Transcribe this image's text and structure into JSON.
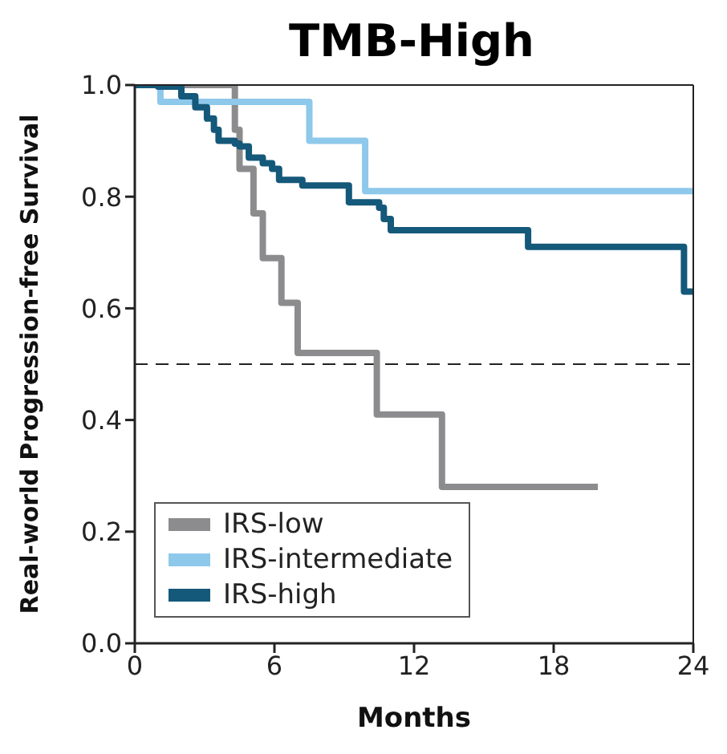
{
  "chart_data": {
    "type": "step",
    "title": "TMB-High",
    "xlabel": "Months",
    "ylabel": "Real-world Progression-free Survival",
    "xlim": [
      0,
      24
    ],
    "xticks": [
      0,
      6,
      12,
      18,
      24
    ],
    "ylim": [
      0,
      1
    ],
    "yticks": [
      {
        "value": 0,
        "label": "0.0"
      },
      {
        "value": 0.2,
        "label": "0.2"
      },
      {
        "value": 0.4,
        "label": "0.4"
      },
      {
        "value": 0.6,
        "label": "0.6"
      },
      {
        "value": 0.8,
        "label": "0.8"
      },
      {
        "value": 1,
        "label": "1.0"
      }
    ],
    "legend": "bottom left",
    "marker": "none",
    "line_style": "solid",
    "ref_lines": [
      {
        "axis": "y",
        "value": 0.5,
        "color": "#222222",
        "line_style": "dashed"
      }
    ],
    "series": [
      {
        "name": "IRS-low",
        "color": "#8c8c8e",
        "x": [
          0,
          4.3,
          4.5,
          5.1,
          5.5,
          6.3,
          7.0,
          10.4,
          13.2,
          19.9
        ],
        "values": [
          1,
          0.92,
          0.85,
          0.77,
          0.69,
          0.61,
          0.52,
          0.41,
          0.28,
          0.28
        ]
      },
      {
        "name": "IRS-intermediate",
        "color": "#8ec8ea",
        "x": [
          0,
          1.1,
          7.5,
          9.9,
          24
        ],
        "values": [
          1,
          0.97,
          0.9,
          0.81,
          0.81
        ]
      },
      {
        "name": "IRS-high",
        "color": "#14587a",
        "x": [
          0,
          1.0,
          2.0,
          2.6,
          3.1,
          3.4,
          3.6,
          4.3,
          4.5,
          4.9,
          5.5,
          5.9,
          6.2,
          7.2,
          9.2,
          10.5,
          10.7,
          11.0,
          16.9,
          23.6,
          24
        ],
        "values": [
          1,
          0.997,
          0.98,
          0.96,
          0.94,
          0.92,
          0.9,
          0.895,
          0.89,
          0.87,
          0.86,
          0.85,
          0.83,
          0.82,
          0.79,
          0.78,
          0.76,
          0.74,
          0.71,
          0.63,
          0.63
        ]
      }
    ]
  }
}
